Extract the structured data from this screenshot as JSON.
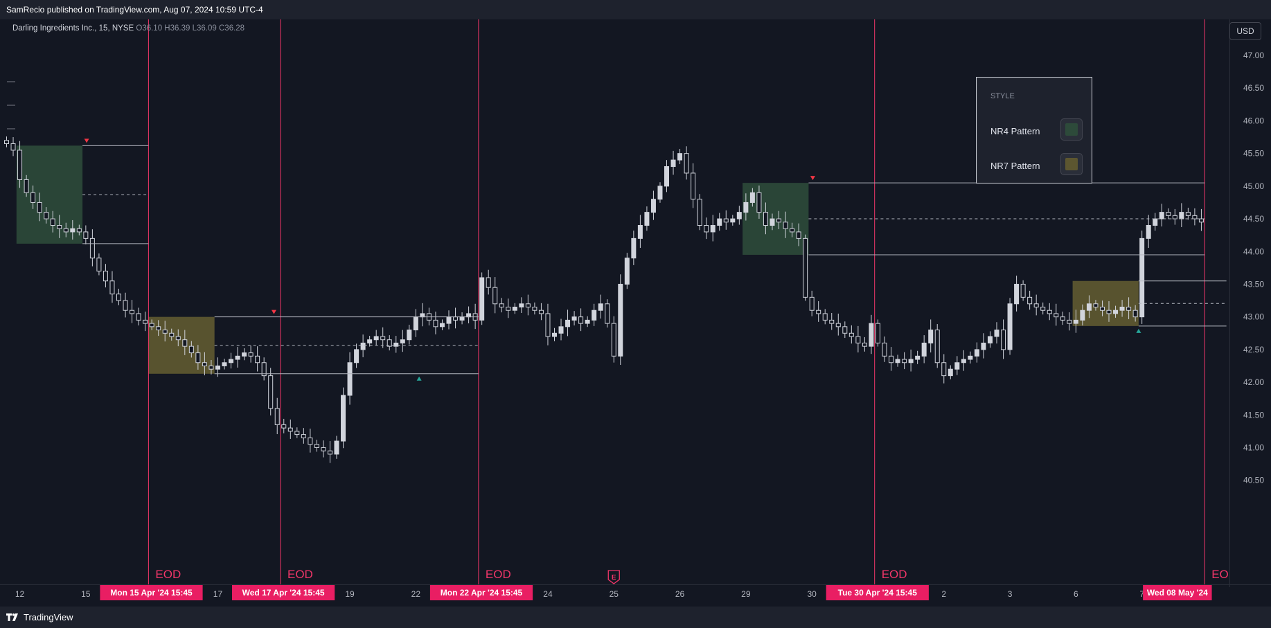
{
  "header": {
    "published": "SamRecio published on TradingView.com, Aug 07, 2024 10:59 UTC-4"
  },
  "footer": {
    "brand": "TradingView"
  },
  "symbol_info": {
    "name": "Darling Ingredients Inc., 15, NYSE",
    "open_label": "O",
    "open": "36.10",
    "high_label": "H",
    "high": "36.39",
    "low_label": "L",
    "low": "36.09",
    "close_label": "C",
    "close": "36.28"
  },
  "currency_button": "USD",
  "style_panel": {
    "header": "STYLE",
    "nr4_label": "NR4 Pattern",
    "nr7_label": "NR7 Pattern",
    "nr4_color": "#2d4a3a",
    "nr7_color": "#5c5630"
  },
  "colors": {
    "background": "#131722",
    "candle": "#d1d4dc",
    "eod_line": "#f23669",
    "eod_tag_bg": "#e91e63",
    "arrow_up": "#26a69a",
    "arrow_down": "#f23645",
    "earnings_icon": "#f23669"
  },
  "chart_data": {
    "type": "candlestick",
    "price_axis": {
      "ylim": [
        40.2,
        47.35
      ],
      "ticks": [
        "47.00",
        "46.50",
        "46.00",
        "45.50",
        "45.00",
        "44.50",
        "44.00",
        "43.50",
        "43.00",
        "42.50",
        "42.00",
        "41.50",
        "41.00",
        "40.50"
      ]
    },
    "x_axis": {
      "ticks": [
        {
          "label": "12",
          "idx": 2
        },
        {
          "label": "15",
          "idx": 12
        },
        {
          "label": "17",
          "idx": 32
        },
        {
          "label": "19",
          "idx": 52
        },
        {
          "label": "22",
          "idx": 62
        },
        {
          "label": "24",
          "idx": 82
        },
        {
          "label": "25",
          "idx": 92
        },
        {
          "label": "26",
          "idx": 102
        },
        {
          "label": "29",
          "idx": 112
        },
        {
          "label": "30",
          "idx": 122
        },
        {
          "label": "2",
          "idx": 142
        },
        {
          "label": "3",
          "idx": 152
        },
        {
          "label": "6",
          "idx": 162
        },
        {
          "label": "7",
          "idx": 172
        }
      ],
      "eod_tags": [
        {
          "label": "Mon 15 Apr '24   15:45",
          "idx": 21.5
        },
        {
          "label": "Wed 17 Apr '24   15:45",
          "idx": 41.5
        },
        {
          "label": "Mon 22 Apr '24   15:45",
          "idx": 71.5
        },
        {
          "label": "Tue 30 Apr '24   15:45",
          "idx": 131.5
        },
        {
          "label": "Wed 08 May '24",
          "idx": 179.5
        }
      ]
    },
    "eod_label": "EOD",
    "eod_lines_idx": [
      21.5,
      41.5,
      71.5,
      131.5,
      181.5
    ],
    "earnings_marker": {
      "idx": 92,
      "label": "E"
    },
    "closes": [
      45.65,
      45.55,
      45.1,
      44.9,
      44.75,
      44.6,
      44.5,
      44.4,
      44.35,
      44.3,
      44.35,
      44.3,
      44.2,
      43.9,
      43.7,
      43.55,
      43.35,
      43.25,
      43.1,
      43.05,
      42.95,
      42.9,
      42.85,
      42.8,
      42.75,
      42.7,
      42.65,
      42.55,
      42.45,
      42.3,
      42.25,
      42.2,
      42.25,
      42.3,
      42.35,
      42.4,
      42.45,
      42.4,
      42.3,
      42.1,
      41.6,
      41.35,
      41.3,
      41.25,
      41.2,
      41.15,
      41.05,
      41.0,
      40.95,
      40.9,
      41.1,
      41.8,
      42.3,
      42.5,
      42.6,
      42.65,
      42.7,
      42.65,
      42.55,
      42.6,
      42.65,
      42.8,
      43.0,
      43.05,
      42.95,
      42.85,
      42.9,
      43.0,
      42.95,
      43.0,
      43.05,
      42.95,
      43.6,
      43.45,
      43.2,
      43.15,
      43.1,
      43.15,
      43.2,
      43.15,
      43.1,
      43.05,
      42.7,
      42.75,
      42.85,
      42.95,
      43.0,
      42.9,
      42.95,
      43.1,
      43.2,
      42.9,
      42.4,
      43.5,
      43.9,
      44.2,
      44.4,
      44.6,
      44.8,
      45.0,
      45.3,
      45.4,
      45.5,
      45.2,
      44.8,
      44.4,
      44.3,
      44.4,
      44.5,
      44.45,
      44.5,
      44.6,
      44.75,
      44.9,
      44.6,
      44.4,
      44.5,
      44.45,
      44.35,
      44.3,
      44.2,
      43.3,
      43.1,
      43.05,
      42.95,
      42.9,
      42.85,
      42.75,
      42.7,
      42.6,
      42.55,
      42.9,
      42.6,
      42.4,
      42.3,
      42.35,
      42.3,
      42.35,
      42.4,
      42.6,
      42.8,
      42.3,
      42.1,
      42.2,
      42.3,
      42.35,
      42.4,
      42.5,
      42.6,
      42.7,
      42.8,
      42.5,
      43.2,
      43.5,
      43.3,
      43.2,
      43.15,
      43.1,
      43.05,
      43.0,
      42.95,
      42.9,
      42.95,
      43.1,
      43.2,
      43.15,
      43.1,
      43.05,
      43.1,
      43.15,
      43.1,
      43.0,
      44.2,
      44.4,
      44.5,
      44.6,
      44.55,
      44.5,
      44.6,
      44.55,
      44.5,
      44.45
    ],
    "nr4_boxes": [
      {
        "idx_start": 1.5,
        "idx_end": 11.5,
        "high": 45.62,
        "low": 44.12,
        "line_end_idx": 21.5,
        "arrow": "down"
      },
      {
        "idx_start": 111.5,
        "idx_end": 121.5,
        "high": 45.05,
        "low": 43.95,
        "line_end_idx": 181.5,
        "arrow": "down"
      }
    ],
    "nr7_boxes": [
      {
        "idx_start": 21.5,
        "idx_end": 31.5,
        "high": 43.0,
        "low": 42.13,
        "line_end_idx": 71.5,
        "arrow_down_idx": 40.5,
        "arrow_up_idx": 62.5
      },
      {
        "idx_start": 161.5,
        "idx_end": 171.5,
        "high": 43.55,
        "low": 42.86,
        "line_end_idx": 184.8,
        "arrow": "up"
      }
    ]
  }
}
